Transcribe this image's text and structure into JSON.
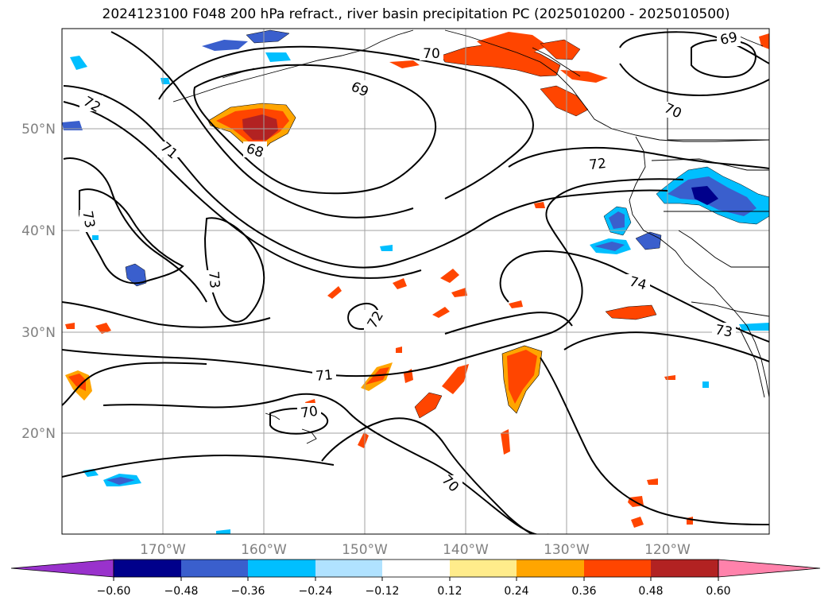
{
  "title": "2024123100 F048 200 hPa refract., river basin precipitation PC (2025010200 - 2025010500)",
  "map": {
    "lon_ticks": [
      "170°W",
      "160°W",
      "150°W",
      "140°W",
      "130°W",
      "120°W"
    ],
    "lat_ticks": [
      "50°N",
      "40°N",
      "30°N",
      "20°N"
    ],
    "contour_labels": [
      "70",
      "69",
      "69",
      "70",
      "72",
      "68",
      "71",
      "72",
      "73",
      "73",
      "72",
      "74",
      "71",
      "70",
      "70",
      "73"
    ]
  },
  "colorbar": {
    "ticks": [
      "−0.60",
      "−0.48",
      "−0.36",
      "−0.24",
      "−0.12",
      "0.12",
      "0.24",
      "0.36",
      "0.48",
      "0.60"
    ],
    "colors": [
      "#9932cc",
      "#00008b",
      "#3a5fcd",
      "#00bfff",
      "#b0e2ff",
      "#ffffff",
      "#ffec8b",
      "#ffa500",
      "#ff4500",
      "#b22222",
      "#ff82ab"
    ]
  },
  "colors": {
    "contour": "#000000",
    "grid": "#a0a0a0",
    "tick_label": "#808080"
  }
}
